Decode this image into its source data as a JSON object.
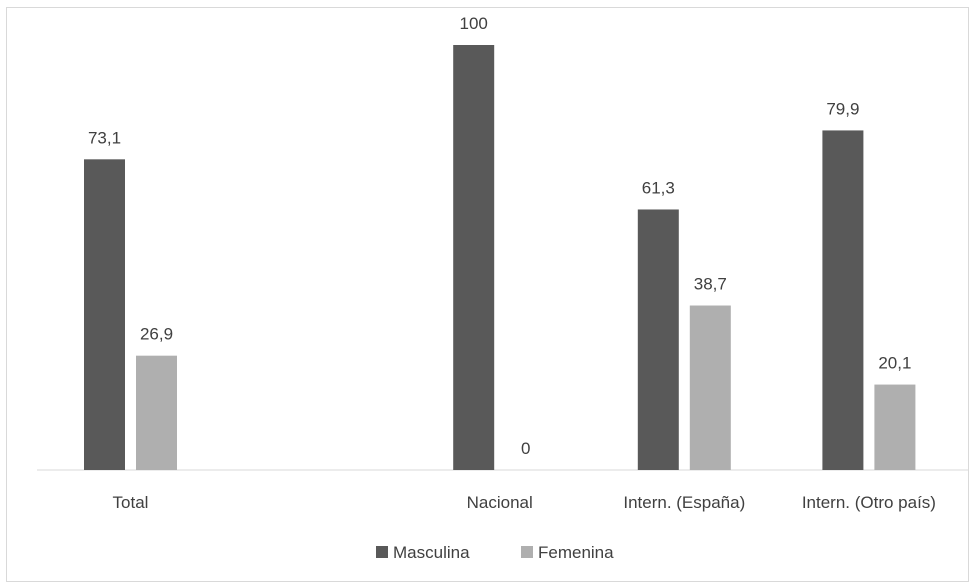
{
  "chart_data": {
    "type": "bar",
    "categories": [
      "Total",
      "",
      "Nacional",
      "Intern. (España)",
      "Intern. (Otro país)"
    ],
    "series": [
      {
        "name": "Masculina",
        "values": [
          73.1,
          null,
          100,
          61.3,
          79.9
        ],
        "labels": [
          "73,1",
          "",
          "100",
          "61,3",
          "79,9"
        ]
      },
      {
        "name": "Femenina",
        "values": [
          26.9,
          null,
          0,
          38.7,
          20.1
        ],
        "labels": [
          "26,9",
          "",
          "0",
          "38,7",
          "20,1"
        ]
      }
    ],
    "colors": {
      "Masculina": "#595959",
      "Femenina": "#afafaf"
    },
    "title": "",
    "xlabel": "",
    "ylabel": "",
    "ylim": [
      0,
      100
    ],
    "grid": false,
    "legend_position": "bottom"
  }
}
